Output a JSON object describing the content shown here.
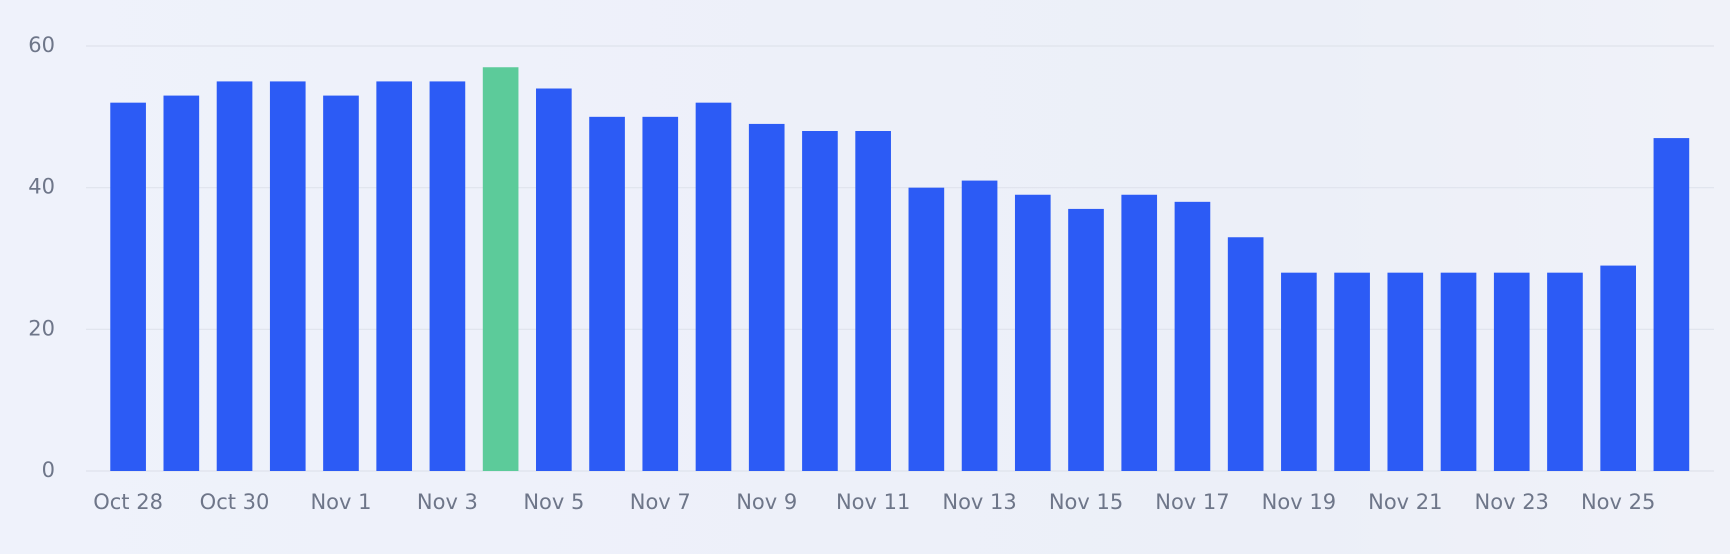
{
  "chart_data": {
    "type": "bar",
    "categories": [
      "Oct 28",
      null,
      "Oct 30",
      null,
      "Nov 1",
      null,
      "Nov 3",
      null,
      "Nov 5",
      null,
      "Nov 7",
      null,
      "Nov 9",
      null,
      "Nov 11",
      null,
      "Nov 13",
      null,
      "Nov 15",
      null,
      "Nov 17",
      null,
      "Nov 19",
      null,
      "Nov 21",
      null,
      "Nov 23",
      null,
      "Nov 25",
      null
    ],
    "values": [
      52,
      53,
      55,
      55,
      53,
      55,
      55,
      57,
      54,
      50,
      50,
      52,
      49,
      48,
      48,
      40,
      41,
      39,
      37,
      39,
      38,
      33,
      28,
      28,
      28,
      28,
      28,
      28,
      29,
      47
    ],
    "colors": [
      "#2c5bf5",
      "#2c5bf5",
      "#2c5bf5",
      "#2c5bf5",
      "#2c5bf5",
      "#2c5bf5",
      "#2c5bf5",
      "#5ccb9a",
      "#2c5bf5",
      "#2c5bf5",
      "#2c5bf5",
      "#2c5bf5",
      "#2c5bf5",
      "#2c5bf5",
      "#2c5bf5",
      "#2c5bf5",
      "#2c5bf5",
      "#2c5bf5",
      "#2c5bf5",
      "#2c5bf5",
      "#2c5bf5",
      "#2c5bf5",
      "#2c5bf5",
      "#2c5bf5",
      "#2c5bf5",
      "#2c5bf5",
      "#2c5bf5",
      "#2c5bf5",
      "#2c5bf5",
      "#2c5bf5"
    ],
    "ylim": [
      0,
      60
    ],
    "yticks": [
      0,
      20,
      40,
      60
    ],
    "grid": true
  }
}
